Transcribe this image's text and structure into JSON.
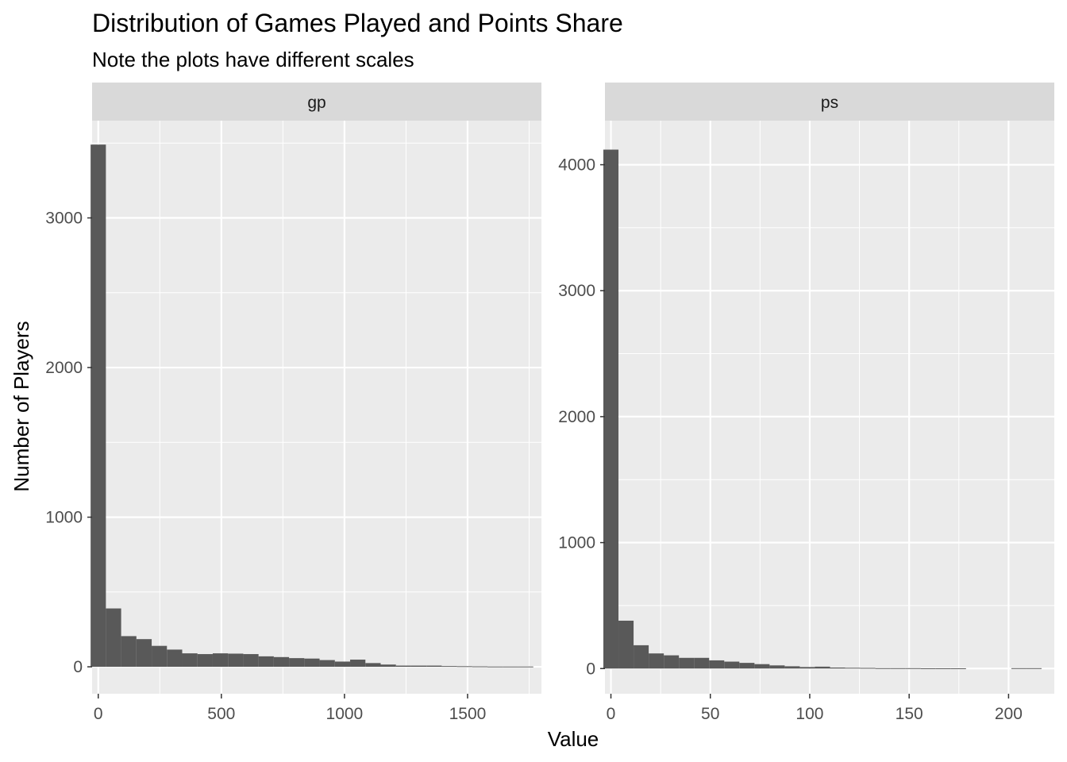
{
  "chart_data": {
    "type": "bar",
    "title": "Distribution of Games Played and Points Share",
    "subtitle": "Note the plots have different scales",
    "xlabel": "Value",
    "ylabel": "Number of Players",
    "grid": true,
    "colors": {
      "bar": "#595959",
      "panel": "#ebebeb",
      "strip": "#d9d9d9",
      "grid": "#ffffff"
    },
    "panels": [
      {
        "label": "gp",
        "binwidth": 62,
        "xlim": [
          -25,
          1800
        ],
        "ylim": [
          -180,
          3650
        ],
        "x_ticks": [
          0,
          500,
          1000,
          1500
        ],
        "x_tick_labels": [
          "0",
          "500",
          "1000",
          "1500"
        ],
        "y_ticks": [
          0,
          1000,
          2000,
          3000
        ],
        "y_tick_labels": [
          "0",
          "1000",
          "2000",
          "3000"
        ],
        "bins": [
          0,
          62,
          124,
          186,
          248,
          310,
          372,
          434,
          496,
          558,
          620,
          682,
          744,
          806,
          868,
          930,
          992,
          1054,
          1116,
          1178,
          1240,
          1302,
          1364,
          1426,
          1488,
          1550,
          1612,
          1674,
          1736
        ],
        "values": [
          3490,
          390,
          205,
          185,
          140,
          115,
          90,
          85,
          90,
          88,
          85,
          70,
          65,
          58,
          55,
          45,
          35,
          48,
          25,
          15,
          8,
          8,
          8,
          5,
          4,
          3,
          2,
          2,
          2
        ]
      },
      {
        "label": "ps",
        "binwidth": 7.6,
        "xlim": [
          -3,
          223
        ],
        "ylim": [
          -200,
          4350
        ],
        "x_ticks": [
          0,
          50,
          100,
          150,
          200
        ],
        "x_tick_labels": [
          "0",
          "50",
          "100",
          "150",
          "200"
        ],
        "y_ticks": [
          0,
          1000,
          2000,
          3000,
          4000
        ],
        "y_tick_labels": [
          "0",
          "1000",
          "2000",
          "3000",
          "4000"
        ],
        "bins": [
          0,
          7.6,
          15.2,
          22.8,
          30.4,
          38,
          45.6,
          53.2,
          60.8,
          68.4,
          76,
          83.6,
          91.2,
          98.8,
          106.4,
          114,
          121.6,
          129.2,
          136.8,
          144.4,
          152,
          159.6,
          167.2,
          174.8,
          182.4,
          190,
          197.6,
          205.2,
          212.8
        ],
        "values": [
          4120,
          380,
          185,
          120,
          105,
          85,
          85,
          65,
          55,
          45,
          35,
          25,
          18,
          12,
          15,
          8,
          6,
          5,
          3,
          3,
          3,
          2,
          2,
          2,
          0,
          0,
          0,
          3,
          3
        ]
      }
    ]
  }
}
